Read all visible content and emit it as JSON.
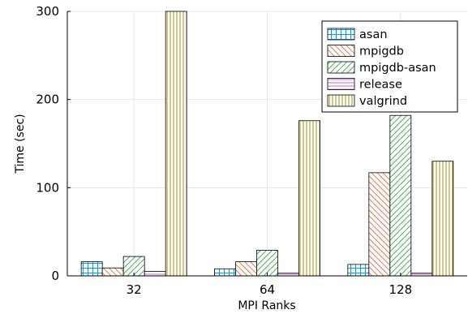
{
  "chart_data": {
    "type": "bar",
    "title": "",
    "xlabel": "MPI Ranks",
    "ylabel": "Time (sec)",
    "categories": [
      "32",
      "64",
      "128"
    ],
    "ylim": [
      0,
      300
    ],
    "yticks": [
      0,
      100,
      200,
      300
    ],
    "grid": true,
    "legend_position": "top-right",
    "series": [
      {
        "name": "asan",
        "values": [
          16,
          8,
          13
        ],
        "color": "#009AFA",
        "pattern": "grid"
      },
      {
        "name": "mpigdb",
        "values": [
          9,
          16,
          117
        ],
        "color": "#E36F47",
        "pattern": "diagonal-back"
      },
      {
        "name": "mpigdb-asan",
        "values": [
          22,
          29,
          182
        ],
        "color": "#3EA44E",
        "pattern": "diagonal-forward"
      },
      {
        "name": "release",
        "values": [
          5,
          3,
          3
        ],
        "color": "#C271D2",
        "pattern": "horizontal"
      },
      {
        "name": "valgrind",
        "values": [
          300,
          176,
          130
        ],
        "color": "#AC8D18",
        "pattern": "vertical"
      }
    ]
  }
}
